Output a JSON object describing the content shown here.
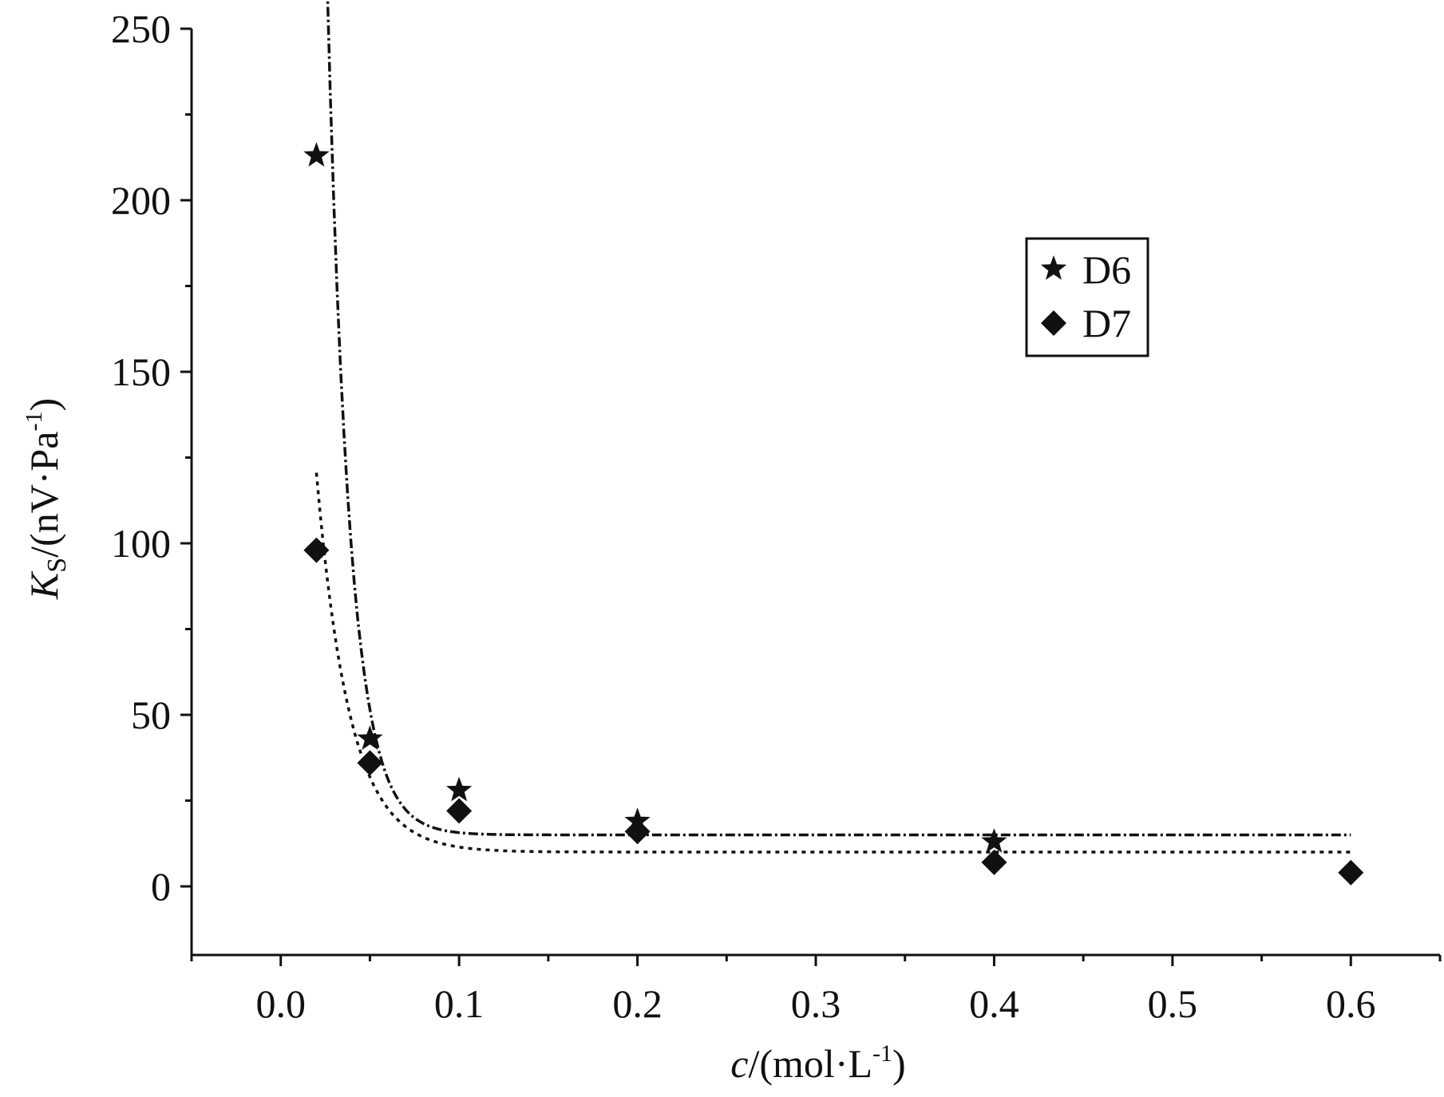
{
  "chart_data": {
    "type": "scatter",
    "xlabel": "c/(mol·L⁻¹)",
    "ylabel": "Ks/(nV·Pa⁻¹)",
    "x_label_parts": {
      "var": "c",
      "unit_main": "/(mol·L",
      "unit_sup": "-1",
      "unit_close": ")"
    },
    "y_label_parts": {
      "var": "K",
      "sub": "S",
      "unit_main": "/(nV·Pa",
      "unit_sup": "-1",
      "unit_close": ")"
    },
    "xlim": [
      -0.05,
      0.65
    ],
    "ylim": [
      -20,
      250
    ],
    "x_ticks": [
      0.0,
      0.1,
      0.2,
      0.3,
      0.4,
      0.5,
      0.6
    ],
    "x_tick_labels": [
      "0.0",
      "0.1",
      "0.2",
      "0.3",
      "0.4",
      "0.5",
      "0.6"
    ],
    "y_ticks": [
      0,
      50,
      100,
      150,
      200,
      250
    ],
    "y_tick_labels": [
      "0",
      "50",
      "100",
      "150",
      "200",
      "250"
    ],
    "grid": false,
    "legend_position": "upper-right",
    "series": [
      {
        "name": "D6",
        "marker": "star",
        "x": [
          0.02,
          0.05,
          0.1,
          0.2,
          0.4
        ],
        "y": [
          213,
          43,
          28,
          19,
          13
        ],
        "fit": {
          "line": "dash-dot",
          "y0": 15,
          "A": 1990,
          "t": 0.0125,
          "x_start": 0.02,
          "x_end": 0.6
        }
      },
      {
        "name": "D7",
        "marker": "diamond",
        "x": [
          0.02,
          0.05,
          0.1,
          0.2,
          0.4,
          0.6
        ],
        "y": [
          98,
          36,
          22,
          16,
          7,
          4
        ],
        "fit": {
          "line": "dotted",
          "y0": 10,
          "A": 326,
          "t": 0.0185,
          "x_start": 0.02,
          "x_end": 0.6
        }
      }
    ],
    "colors": {
      "ink": "#111111",
      "background": "#ffffff"
    }
  }
}
